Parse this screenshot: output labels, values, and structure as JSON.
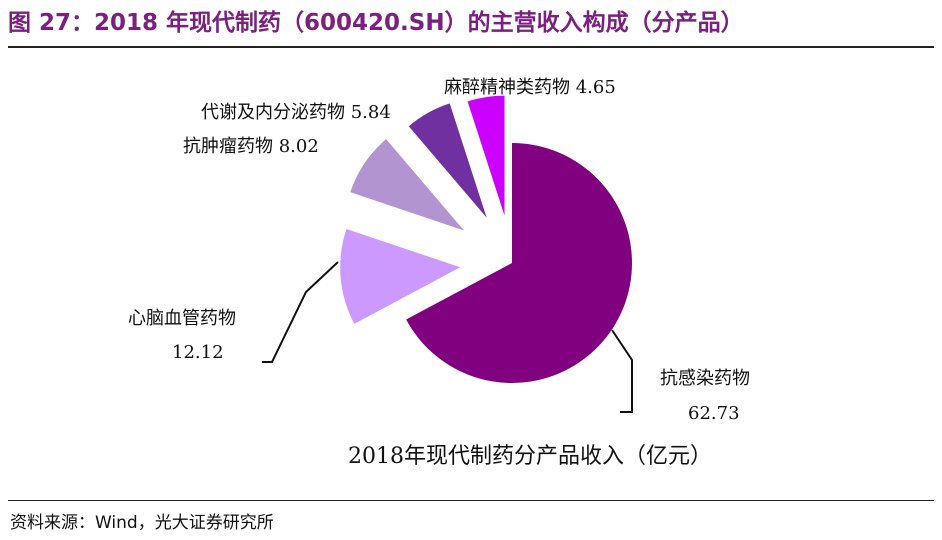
{
  "figure": {
    "title": "图 27：2018 年现代制药（600420.SH）的主营收入构成（分产品）",
    "source": "资料来源：Wind，光大证券研究所"
  },
  "chart_data": {
    "type": "pie",
    "title": "2018年现代制药分产品收入（亿元）",
    "exploded": true,
    "slices": [
      {
        "label": "抗感染药物",
        "value": 62.73,
        "value_text": "62.73",
        "color": "#800080"
      },
      {
        "label": "心脑血管药物",
        "value": 12.12,
        "value_text": "12.12",
        "color": "#cc99ff"
      },
      {
        "label": "抗肿瘤药物",
        "value": 8.02,
        "value_text": "8.02",
        "color": "#b294d0"
      },
      {
        "label": "代谢及内分泌药物",
        "value": 5.84,
        "value_text": "5.84",
        "color": "#7030a0"
      },
      {
        "label": "麻醉精神类药物",
        "value": 4.65,
        "value_text": "4.65",
        "color": "#cc00ff"
      }
    ]
  }
}
